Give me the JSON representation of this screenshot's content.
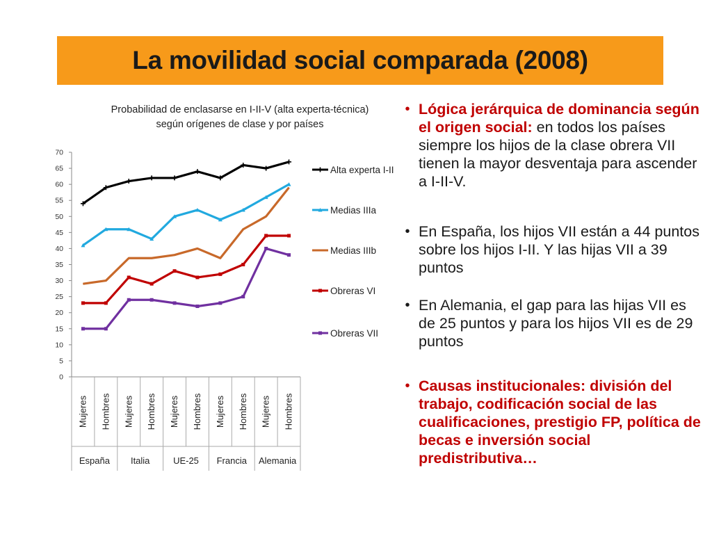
{
  "slide": {
    "title": "La movilidad social comparada (2008)"
  },
  "bullets": [
    {
      "id": "b1",
      "bold_red": "Lógica jerárquica de dominancia según el origen social:",
      "text": " en todos los países siempre los hijos de la clase obrera VII tienen la mayor desventaja para ascender a I-II-V."
    },
    {
      "id": "b2",
      "bold_red": "",
      "text": "En España, los hijos VII están a 44 puntos sobre los hijos I-II. Y las hijas VII a 39 puntos"
    },
    {
      "id": "b3",
      "bold_red": "",
      "text": "En Alemania, el gap para las hijas VII es de 25 puntos y para los hijos VII es de 29 puntos"
    },
    {
      "id": "b4",
      "bold_red": "Causas institucionales: división del trabajo, codificación social de las cualificaciones, prestigio FP, política de becas e inversión social predistributiva…",
      "text": ""
    }
  ],
  "chart_data": {
    "type": "line",
    "title_lines": [
      "Probabilidad de enclasarse en I-II-V (alta experta-técnica)",
      "según orígenes de clase y por países"
    ],
    "categories": [
      "Mujeres",
      "Hombres",
      "Mujeres",
      "Hombres",
      "Mujeres",
      "Hombres",
      "Mujeres",
      "Hombres",
      "Mujeres",
      "Hombres"
    ],
    "groups": [
      "España",
      "Italia",
      "UE-25",
      "Francia",
      "Alemania"
    ],
    "ylim": [
      0,
      70
    ],
    "yticks": [
      0,
      5,
      10,
      15,
      20,
      25,
      30,
      35,
      40,
      45,
      50,
      55,
      60,
      65,
      70
    ],
    "grid": false,
    "legend_position": "right",
    "series": [
      {
        "name": "Alta experta  I-II",
        "color": "#000000",
        "marker": "plus",
        "values": [
          54,
          59,
          61,
          62,
          62,
          64,
          62,
          66,
          65,
          67
        ]
      },
      {
        "name": "Medias  IIIa",
        "color": "#21a9df",
        "marker": "triangle",
        "values": [
          41,
          46,
          46,
          43,
          50,
          52,
          49,
          52,
          56,
          60
        ]
      },
      {
        "name": "Medias  IIIb",
        "color": "#c8692a",
        "marker": "none",
        "values": [
          29,
          30,
          37,
          37,
          38,
          40,
          37,
          46,
          50,
          59
        ]
      },
      {
        "name": "Obreras  VI",
        "color": "#c00000",
        "marker": "square",
        "values": [
          23,
          23,
          31,
          29,
          33,
          31,
          32,
          35,
          44,
          44
        ]
      },
      {
        "name": "Obreras VII",
        "color": "#7030a0",
        "marker": "square",
        "values": [
          15,
          15,
          24,
          24,
          23,
          22,
          23,
          25,
          40,
          38
        ]
      }
    ]
  }
}
